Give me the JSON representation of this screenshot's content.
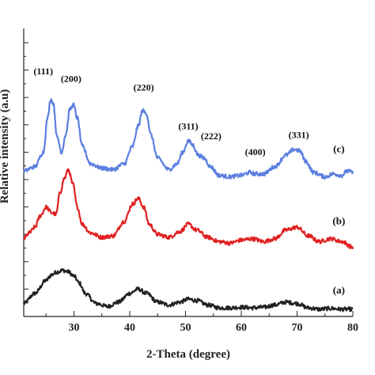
{
  "chart_data": {
    "type": "line",
    "xlabel": "2-Theta (degree)",
    "ylabel": "Relative intensity (a.u)",
    "xlim": [
      21,
      80
    ],
    "ylim": [
      0,
      10
    ],
    "x_ticks": [
      30,
      40,
      50,
      60,
      70,
      80
    ],
    "grid": false,
    "series": [
      {
        "name": "(a)",
        "color": "#222222",
        "x": [
          21,
          23,
          25,
          26,
          27,
          28,
          29,
          30,
          31,
          32,
          34,
          36,
          38,
          40,
          41.5,
          43,
          45,
          47,
          49,
          50.5,
          52,
          54,
          56,
          58,
          60,
          62,
          64,
          66,
          68,
          70,
          72,
          74,
          76,
          78,
          80
        ],
        "y": [
          0.45,
          0.8,
          1.25,
          1.45,
          1.55,
          1.6,
          1.55,
          1.4,
          1.15,
          0.8,
          0.45,
          0.35,
          0.5,
          0.8,
          0.95,
          0.8,
          0.5,
          0.4,
          0.5,
          0.6,
          0.55,
          0.4,
          0.3,
          0.3,
          0.32,
          0.3,
          0.32,
          0.4,
          0.5,
          0.45,
          0.3,
          0.25,
          0.28,
          0.25,
          0.25
        ]
      },
      {
        "name": "(b)",
        "color": "#e02020",
        "x": [
          21,
          22,
          23,
          24,
          25,
          26,
          26.8,
          27.5,
          28.3,
          29,
          29.8,
          30.6,
          31.5,
          33,
          35,
          37,
          39,
          40.5,
          41.5,
          42.5,
          43.5,
          45,
          47,
          49,
          50.5,
          52,
          54,
          56,
          58,
          60,
          62,
          64,
          66,
          68,
          70,
          72,
          74,
          76,
          78,
          80
        ],
        "y": [
          2.7,
          2.9,
          3.1,
          3.5,
          3.8,
          3.6,
          3.55,
          4.3,
          4.8,
          5.1,
          4.6,
          3.8,
          3.2,
          2.9,
          2.75,
          2.8,
          3.3,
          3.9,
          4.1,
          3.8,
          3.2,
          2.85,
          2.75,
          2.95,
          3.2,
          3.0,
          2.75,
          2.6,
          2.55,
          2.65,
          2.7,
          2.6,
          2.7,
          3.0,
          3.1,
          2.8,
          2.6,
          2.7,
          2.6,
          2.4
        ]
      },
      {
        "name": "(c)",
        "color": "#5b7fe0",
        "x": [
          21,
          23,
          24.5,
          25.3,
          25.8,
          26.3,
          27,
          27.8,
          28.5,
          29.3,
          29.9,
          30.6,
          31.5,
          33,
          35,
          37,
          39,
          40.5,
          41.5,
          42.3,
          43,
          43.8,
          45,
          47,
          48.5,
          49.5,
          50.5,
          51.3,
          52.3,
          53.3,
          54.5,
          56,
          58,
          60,
          61.5,
          62.5,
          64,
          66,
          68,
          69.5,
          70.5,
          71.5,
          73,
          75,
          76.5,
          78,
          79,
          80
        ],
        "y": [
          5.05,
          5.2,
          5.7,
          6.9,
          7.55,
          7.4,
          6.2,
          5.7,
          6.3,
          7.2,
          7.35,
          6.9,
          5.9,
          5.3,
          5.15,
          5.1,
          5.3,
          5.9,
          6.6,
          7.15,
          7.05,
          6.3,
          5.5,
          5.1,
          5.3,
          5.7,
          6.1,
          5.95,
          5.6,
          5.5,
          5.2,
          4.9,
          4.85,
          4.9,
          5.0,
          4.95,
          4.95,
          5.2,
          5.6,
          5.8,
          5.75,
          5.4,
          5.0,
          4.85,
          4.95,
          4.9,
          5.05,
          5.0
        ]
      }
    ],
    "annotations": [
      {
        "text": "(111)",
        "x": 24.5,
        "y": 8.4
      },
      {
        "text": "(200)",
        "x": 29.5,
        "y": 8.15
      },
      {
        "text": "(220)",
        "x": 42.5,
        "y": 7.85
      },
      {
        "text": "(311)",
        "x": 50.5,
        "y": 6.5
      },
      {
        "text": "(222)",
        "x": 54.6,
        "y": 6.15
      },
      {
        "text": "(400)",
        "x": 62.5,
        "y": 5.6
      },
      {
        "text": "(331)",
        "x": 70.3,
        "y": 6.2
      },
      {
        "text": "(c)",
        "x": 77.5,
        "y": 5.7
      },
      {
        "text": "(b)",
        "x": 77.5,
        "y": 3.2
      },
      {
        "text": "(a)",
        "x": 77.5,
        "y": 0.8
      }
    ]
  }
}
